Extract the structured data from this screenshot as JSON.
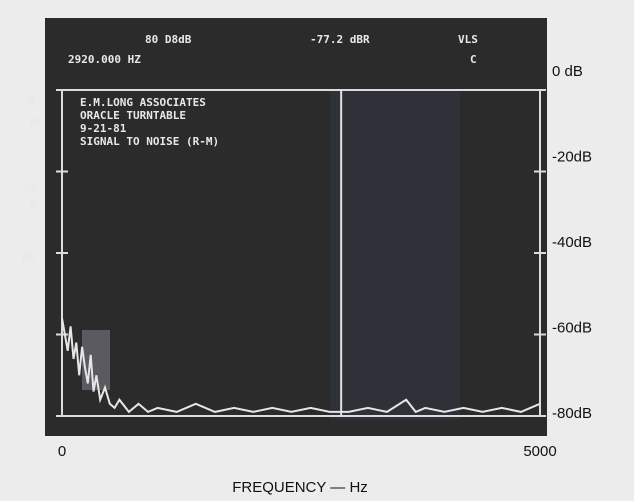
{
  "chart_data": {
    "type": "line",
    "x_label": "FREQUENCY — Hz",
    "readouts": [
      "80 D8dB",
      "-77.2 dBR",
      "VLS",
      "C"
    ],
    "cursor": {
      "x": 2920,
      "label": "2920.000 HZ"
    },
    "side_labels": [
      "B",
      "M",
      "SU",
      "B",
      "RS"
    ],
    "annotation_lines": [
      "E.M.LONG ASSOCIATES",
      "ORACLE TURNTABLE",
      "9-21-81",
      "SIGNAL TO NOISE (R-M)"
    ],
    "xlim": [
      0,
      5000
    ],
    "xticks": [
      0,
      5000
    ],
    "ylim": [
      -80,
      0
    ],
    "yticks": [
      {
        "value": 0,
        "label": "0 dB"
      },
      {
        "value": -20,
        "label": "-20dB"
      },
      {
        "value": -40,
        "label": "-40dB"
      },
      {
        "value": -60,
        "label": "-60dB"
      },
      {
        "value": -80,
        "label": "-80dB"
      }
    ],
    "series": [
      {
        "color": "#e6e6e6",
        "x": [
          0,
          30,
          60,
          90,
          120,
          150,
          180,
          210,
          240,
          270,
          300,
          330,
          360,
          400,
          450,
          500,
          550,
          600,
          700,
          800,
          900,
          1000,
          1200,
          1400,
          1600,
          1800,
          2000,
          2200,
          2400,
          2600,
          2800,
          3000,
          3200,
          3400,
          3600,
          3700,
          3800,
          4000,
          4200,
          4400,
          4600,
          4800,
          5000
        ],
        "values": [
          -56,
          -60,
          -64,
          -58,
          -66,
          -62,
          -70,
          -63,
          -68,
          -72,
          -65,
          -74,
          -70,
          -76,
          -73,
          -77,
          -78,
          -76,
          -79,
          -77,
          -79,
          -78,
          -79,
          -77,
          -79,
          -78,
          -79,
          -78,
          -79,
          -78,
          -79,
          -79,
          -78,
          -79,
          -76,
          -79,
          -78,
          -79,
          -78,
          -79,
          -78,
          -79,
          -77
        ]
      }
    ]
  }
}
